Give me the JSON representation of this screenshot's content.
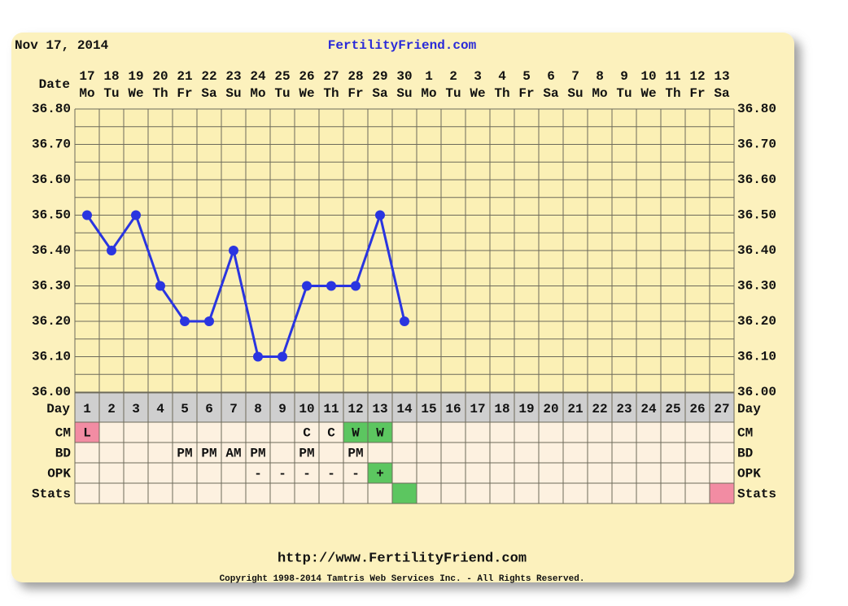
{
  "header": {
    "date": "Nov 17, 2014",
    "site": "FertilityFriend.com"
  },
  "chart_data": {
    "type": "line",
    "date_label": "Date",
    "dates": [
      "17",
      "18",
      "19",
      "20",
      "21",
      "22",
      "23",
      "24",
      "25",
      "26",
      "27",
      "28",
      "29",
      "30",
      "1",
      "2",
      "3",
      "4",
      "5",
      "6",
      "7",
      "8",
      "9",
      "10",
      "11",
      "12",
      "13"
    ],
    "weekdays": [
      "Mo",
      "Tu",
      "We",
      "Th",
      "Fr",
      "Sa",
      "Su",
      "Mo",
      "Tu",
      "We",
      "Th",
      "Fr",
      "Sa",
      "Su",
      "Mo",
      "Tu",
      "We",
      "Th",
      "Fr",
      "Sa",
      "Su",
      "Mo",
      "Tu",
      "We",
      "Th",
      "Fr",
      "Sa"
    ],
    "day_label": "Day",
    "categories": [
      1,
      2,
      3,
      4,
      5,
      6,
      7,
      8,
      9,
      10,
      11,
      12,
      13,
      14,
      15,
      16,
      17,
      18,
      19,
      20,
      21,
      22,
      23,
      24,
      25,
      26,
      27
    ],
    "series": [
      {
        "name": "Temperature",
        "color": "#2a35e0",
        "values": [
          36.5,
          36.4,
          36.5,
          36.3,
          36.2,
          36.2,
          36.4,
          36.1,
          36.1,
          36.3,
          36.3,
          36.3,
          36.5,
          36.2,
          null,
          null,
          null,
          null,
          null,
          null,
          null,
          null,
          null,
          null,
          null,
          null,
          null
        ]
      }
    ],
    "ylim": [
      36.0,
      36.8
    ],
    "yticks": [
      {
        "value": 36.0,
        "label": "36.00"
      },
      {
        "value": 36.1,
        "label": "36.10"
      },
      {
        "value": 36.2,
        "label": "36.20"
      },
      {
        "value": 36.3,
        "label": "36.30"
      },
      {
        "value": 36.4,
        "label": "36.40"
      },
      {
        "value": 36.5,
        "label": "36.50"
      },
      {
        "value": 36.6,
        "label": "36.60"
      },
      {
        "value": 36.7,
        "label": "36.70"
      },
      {
        "value": 36.8,
        "label": "36.80"
      }
    ],
    "grid": true,
    "rows": [
      {
        "name": "CM",
        "cells": [
          "L",
          null,
          null,
          null,
          null,
          null,
          null,
          null,
          null,
          "C",
          "C",
          "W",
          "W",
          null,
          null,
          null,
          null,
          null,
          null,
          null,
          null,
          null,
          null,
          null,
          null,
          null,
          null
        ],
        "highlights": [
          {
            "index": 0,
            "color": "#f28ca3"
          },
          {
            "index": 11,
            "color": "#5cc660"
          },
          {
            "index": 12,
            "color": "#5cc660"
          }
        ]
      },
      {
        "name": "BD",
        "cells": [
          null,
          null,
          null,
          null,
          "PM",
          "PM",
          "AM",
          "PM",
          null,
          "PM",
          null,
          "PM",
          null,
          null,
          null,
          null,
          null,
          null,
          null,
          null,
          null,
          null,
          null,
          null,
          null,
          null,
          null
        ],
        "highlights": []
      },
      {
        "name": "OPK",
        "cells": [
          null,
          null,
          null,
          null,
          null,
          null,
          null,
          "-",
          "-",
          "-",
          "-",
          "-",
          "+",
          null,
          null,
          null,
          null,
          null,
          null,
          null,
          null,
          null,
          null,
          null,
          null,
          null,
          null
        ],
        "highlights": [
          {
            "index": 12,
            "color": "#5cc660"
          }
        ]
      },
      {
        "name": "Stats",
        "cells": [
          null,
          null,
          null,
          null,
          null,
          null,
          null,
          null,
          null,
          null,
          null,
          null,
          null,
          null,
          null,
          null,
          null,
          null,
          null,
          null,
          null,
          null,
          null,
          null,
          null,
          null,
          null
        ],
        "highlights": [
          {
            "index": 13,
            "color": "#5cc660"
          },
          {
            "index": 26,
            "color": "#f28ca3"
          }
        ]
      }
    ]
  },
  "footer": {
    "url": "http://www.FertilityFriend.com",
    "copyright": "Copyright 1998-2014 Tamtris Web Services Inc. - All Rights Reserved."
  }
}
